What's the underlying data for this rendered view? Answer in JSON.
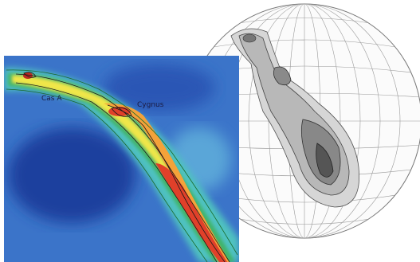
{
  "labels": {
    "cas_a": "Cas A",
    "cygnus": "Cygnus"
  }
}
